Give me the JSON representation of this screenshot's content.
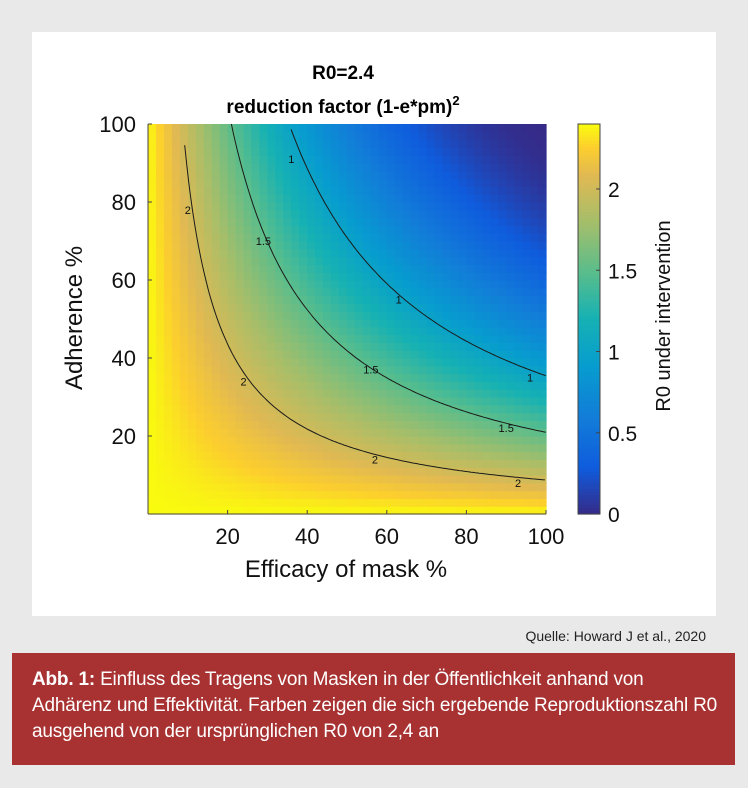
{
  "chart_data": {
    "type": "heatmap",
    "title_line1": "R0=2.4",
    "title_line2": "reduction factor (1-e*pm)",
    "title_superscript": "2",
    "xlabel": "Efficacy of mask %",
    "ylabel": "Adherence %",
    "colorbar_label": "R0 under intervention",
    "xlim": [
      0,
      100
    ],
    "ylim": [
      0,
      100
    ],
    "x_ticks": [
      20,
      40,
      60,
      80,
      100
    ],
    "y_ticks": [
      20,
      40,
      60,
      80,
      100
    ],
    "clim": [
      0,
      2.4
    ],
    "colorbar_ticks": [
      0,
      0.5,
      1,
      1.5,
      2
    ],
    "R0": 2.4,
    "formula": "R0 * (1 - (efficacy/100) * (adherence/100))^2",
    "contour_levels": [
      1,
      1.5,
      2
    ],
    "contour_labels": [
      {
        "text": "2",
        "x": 10,
        "y": 78
      },
      {
        "text": "1.5",
        "x": 29,
        "y": 70
      },
      {
        "text": "1",
        "x": 36,
        "y": 91
      },
      {
        "text": "2",
        "x": 24,
        "y": 34
      },
      {
        "text": "1.5",
        "x": 56,
        "y": 37
      },
      {
        "text": "1",
        "x": 63,
        "y": 55
      },
      {
        "text": "2",
        "x": 57,
        "y": 14
      },
      {
        "text": "1.5",
        "x": 90,
        "y": 22
      },
      {
        "text": "1",
        "x": 96,
        "y": 35
      },
      {
        "text": "2",
        "x": 93,
        "y": 8
      }
    ],
    "colormap": "parula"
  },
  "source": "Quelle: Howard J et al., 2020",
  "caption": {
    "label": "Abb. 1:",
    "text": " Einfluss des Tragens von Masken in der Öffentlichkeit anhand von Adhärenz und Effektivität. Farben zeigen die sich ergebende Reproduktionszahl R0 ausgehend von der ursprünglichen R0 von 2,4 an"
  }
}
